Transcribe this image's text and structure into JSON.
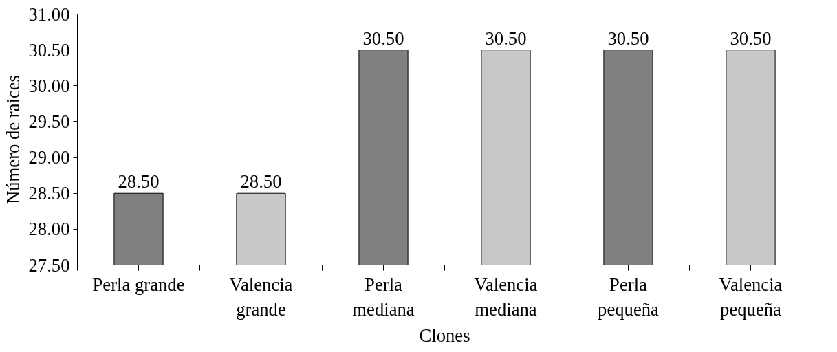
{
  "chart_data": {
    "type": "bar",
    "xlabel": "Clones",
    "ylabel": "Número de raices",
    "categories": [
      "Perla grande",
      "Valencia grande",
      "Perla mediana",
      "Valencia mediana",
      "Perla pequeña",
      "Valencia pequeña"
    ],
    "values": [
      28.5,
      28.5,
      30.5,
      30.5,
      30.5,
      30.5
    ],
    "colors": [
      "#808080",
      "#c8c8c8",
      "#808080",
      "#c8c8c8",
      "#808080",
      "#c8c8c8"
    ],
    "value_labels": [
      "28.50",
      "28.50",
      "30.50",
      "30.50",
      "30.50",
      "30.50"
    ],
    "ylim": [
      27.5,
      31
    ],
    "yticks": [
      {
        "value": 27.5,
        "label": "27.50"
      },
      {
        "value": 28,
        "label": "28.00"
      },
      {
        "value": 28.5,
        "label": "28.50"
      },
      {
        "value": 29,
        "label": "29.00"
      },
      {
        "value": 29.5,
        "label": "29.50"
      },
      {
        "value": 30,
        "label": "30.00"
      },
      {
        "value": 30.5,
        "label": "30.50"
      },
      {
        "value": 31,
        "label": "31.00"
      }
    ],
    "grid": false
  }
}
